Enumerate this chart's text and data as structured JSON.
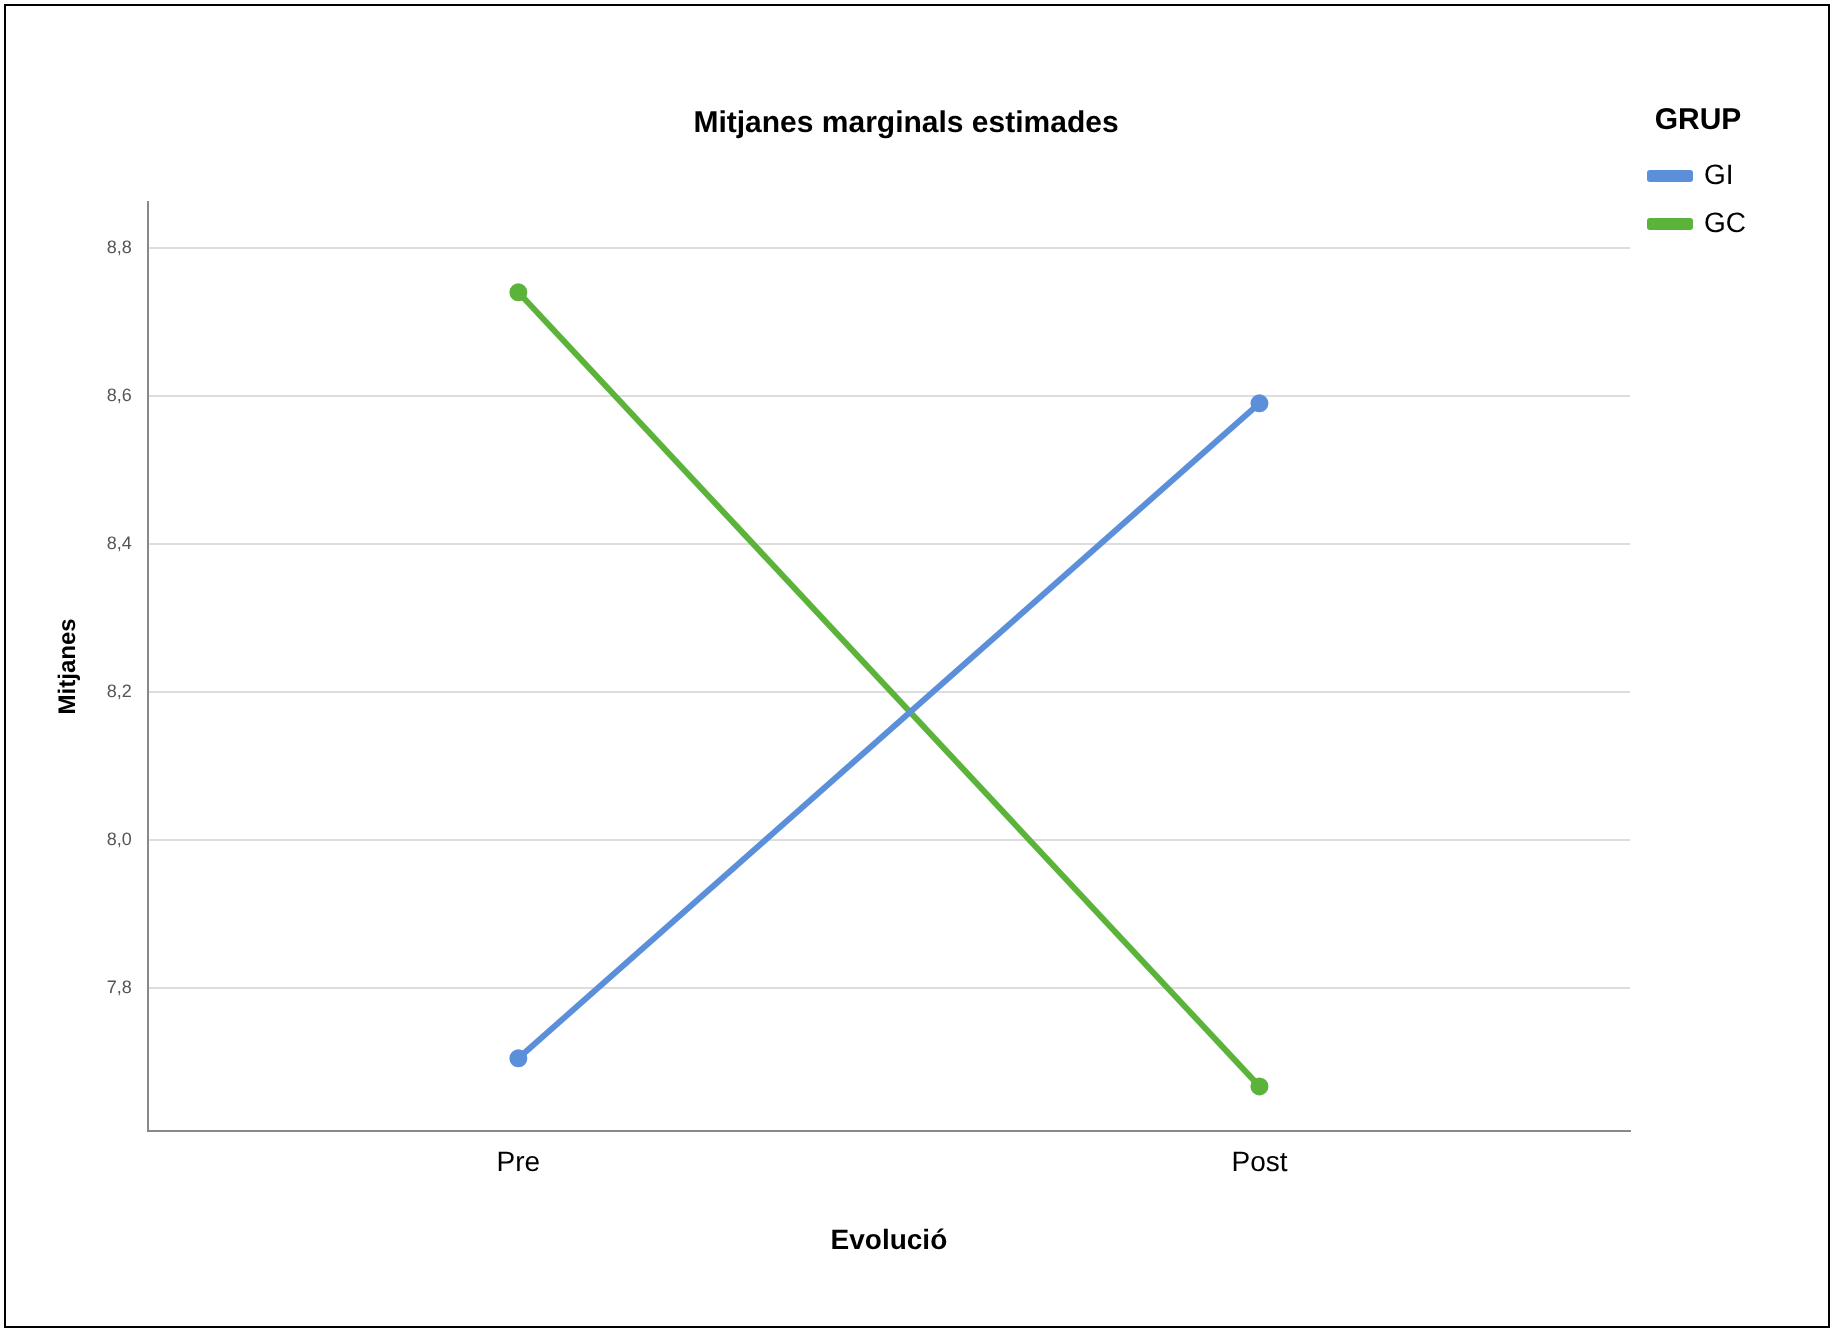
{
  "chart_data": {
    "type": "line",
    "title": "Mitjanes marginals estimades",
    "xlabel": "Evolució",
    "ylabel": "Mitjanes",
    "legend_title": "GRUP",
    "categories": [
      "Pre",
      "Post"
    ],
    "series": [
      {
        "name": "GI",
        "color": "#5b8fd9",
        "values": [
          7.705,
          8.59
        ]
      },
      {
        "name": "GC",
        "color": "#5bb33a",
        "values": [
          8.74,
          7.667
        ]
      }
    ],
    "ylim": [
      7.607,
      8.862
    ],
    "yticks": [
      {
        "value": 7.8,
        "label": "7,8"
      },
      {
        "value": 8.0,
        "label": "8,0"
      },
      {
        "value": 8.2,
        "label": "8,2"
      },
      {
        "value": 8.4,
        "label": "8,4"
      },
      {
        "value": 8.6,
        "label": "8,6"
      },
      {
        "value": 8.8,
        "label": "8,8"
      }
    ],
    "grid": "y",
    "legend": "top right",
    "marker": "circle",
    "line_style": "solid"
  }
}
